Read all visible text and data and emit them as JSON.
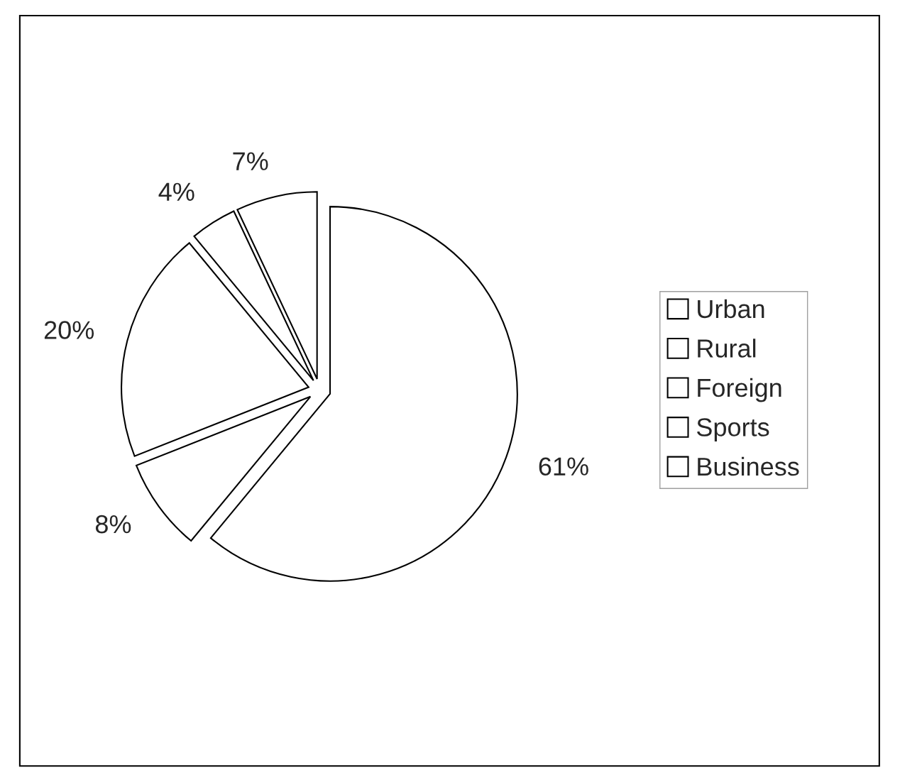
{
  "chart_data": {
    "type": "pie",
    "categories": [
      "Urban",
      "Rural",
      "Foreign",
      "Sports",
      "Business"
    ],
    "values": [
      61,
      8,
      20,
      4,
      7
    ],
    "value_labels": [
      "61%",
      "8%",
      "20%",
      "4%",
      "7%"
    ],
    "colors": [
      "#ffffff",
      "#ffffff",
      "#ffffff",
      "#ffffff",
      "#ffffff"
    ],
    "legend": "right"
  }
}
